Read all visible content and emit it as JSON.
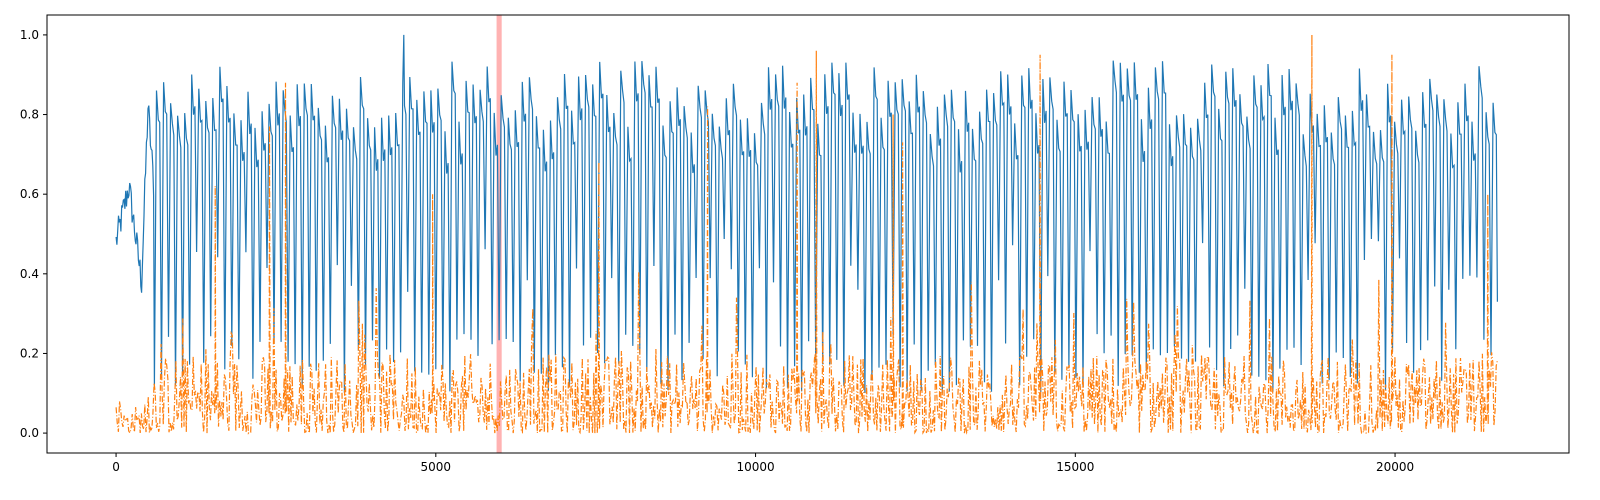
{
  "chart_data": {
    "type": "line",
    "title": "",
    "xlabel": "",
    "ylabel": "",
    "xlim": [
      -1080,
      22720
    ],
    "ylim": [
      -0.05,
      1.05
    ],
    "x_ticks": [
      0,
      5000,
      10000,
      15000,
      20000
    ],
    "x_tick_labels": [
      "0",
      "5000",
      "10000",
      "15000",
      "20000"
    ],
    "y_ticks": [
      0.0,
      0.2,
      0.4,
      0.6,
      0.8,
      1.0
    ],
    "y_tick_labels": [
      "0.0",
      "0.2",
      "0.4",
      "0.6",
      "0.8",
      "1.0"
    ],
    "grid": false,
    "legend": "none",
    "highlight_span": {
      "x_start": 5950,
      "x_end": 6030,
      "color": "#ff0000",
      "opacity": 0.3
    },
    "series": [
      {
        "color": "#1f77b4",
        "line_style": "solid",
        "approx_points": 21600,
        "description_values": {
          "x_start": 0,
          "x_end": 21600,
          "startup_segment": {
            "x": [
              0,
              100,
              200,
              300,
              400,
              500,
              600
            ],
            "y": [
              0.48,
              0.55,
              0.62,
              0.5,
              0.38,
              0.82,
              0.6
            ]
          },
          "oscillation_upper_range": [
            0.75,
            1.0
          ],
          "oscillation_lower_range": [
            0.1,
            0.25
          ],
          "peak_max": {
            "x": 4500,
            "y": 1.0
          },
          "end_value": {
            "x": 21600,
            "y": 0.33
          }
        }
      },
      {
        "color": "#ff7f0e",
        "line_style": "dashdot",
        "approx_points": 21600,
        "description_values": {
          "x_start": 0,
          "x_end": 21600,
          "baseline_range": [
            0.0,
            0.2
          ],
          "spikes": [
            {
              "x": 1550,
              "y": 0.62
            },
            {
              "x": 2400,
              "y": 0.77
            },
            {
              "x": 2650,
              "y": 0.88
            },
            {
              "x": 4950,
              "y": 0.6
            },
            {
              "x": 7550,
              "y": 0.68
            },
            {
              "x": 9250,
              "y": 0.82
            },
            {
              "x": 10650,
              "y": 0.88
            },
            {
              "x": 10950,
              "y": 0.96
            },
            {
              "x": 12150,
              "y": 0.8
            },
            {
              "x": 12300,
              "y": 0.73
            },
            {
              "x": 14450,
              "y": 0.95
            },
            {
              "x": 18700,
              "y": 1.0
            },
            {
              "x": 19950,
              "y": 0.95
            },
            {
              "x": 21450,
              "y": 0.6
            }
          ]
        }
      }
    ]
  }
}
